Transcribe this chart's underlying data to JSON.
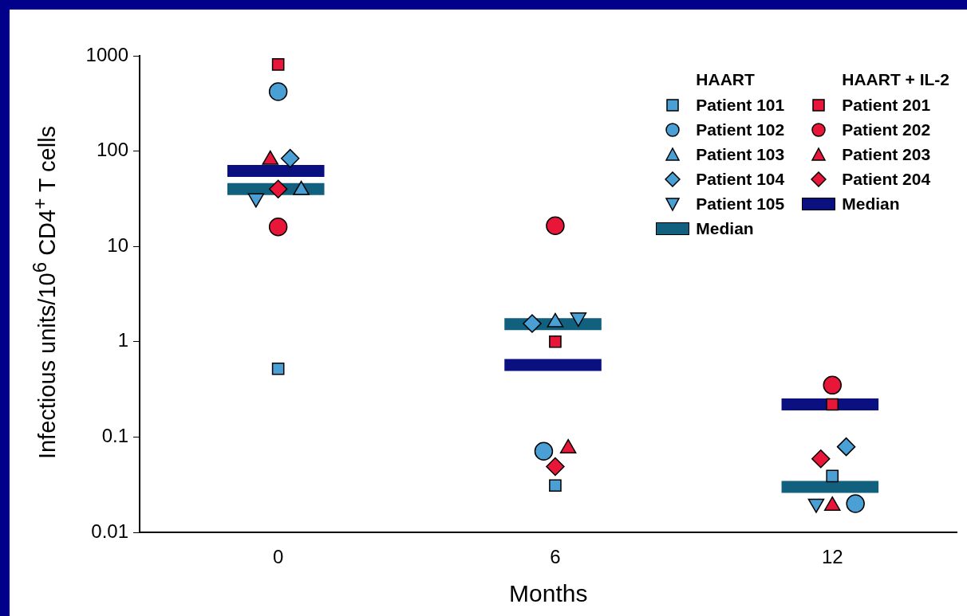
{
  "chart_data": {
    "type": "scatter",
    "xlabel": "Months",
    "ylabel": "Infectious units/10$^{6}$ CD4$^{+}$ T cells",
    "log": "y",
    "ylim": [
      0.01,
      1000
    ],
    "yticks": [
      0.01,
      0.1,
      1,
      10,
      100,
      1000
    ],
    "xlim": [
      -3,
      14.7
    ],
    "xticks": [
      0,
      6,
      12
    ],
    "legend": "top right",
    "annotations": [
      "HAART",
      "HAART + IL-2"
    ],
    "series": [
      {
        "name": "Patient 101",
        "color": "#4a9fd4",
        "marker": "square",
        "x": [
          0,
          6,
          12
        ],
        "values": [
          0.52,
          0.031,
          0.039
        ]
      },
      {
        "name": "Patient 102",
        "color": "#4a9fd4",
        "marker": "circle",
        "x": [
          0,
          5.75,
          12.5
        ],
        "values": [
          420,
          0.071,
          0.02
        ]
      },
      {
        "name": "Patient 103",
        "color": "#4a9fd4",
        "marker": "triangle",
        "x": [
          0.5,
          6,
          null
        ],
        "values": [
          39,
          1.6,
          null
        ]
      },
      {
        "name": "Patient 104",
        "color": "#4a9fd4",
        "marker": "diamond",
        "x": [
          0.26,
          5.5,
          12.3
        ],
        "values": [
          84,
          1.55,
          0.079
        ]
      },
      {
        "name": "Patient 105",
        "color": "#4a9fd4",
        "marker": "triangle_down",
        "x": [
          -0.48,
          6.5,
          11.65
        ],
        "values": [
          32,
          1.8,
          0.02
        ]
      },
      {
        "name": "Median",
        "type": "line",
        "color": "#10607e",
        "x": [
          -1.1,
          1,
          null,
          4.9,
          7,
          null,
          10.9,
          13
        ],
        "values": [
          40,
          40,
          null,
          1.53,
          1.53,
          null,
          0.03,
          0.03
        ]
      },
      {
        "name": "Patient 201",
        "color": "#e8173a",
        "marker": "square",
        "x": [
          0,
          6,
          12
        ],
        "values": [
          810,
          1,
          0.22
        ]
      },
      {
        "name": "Patient 202",
        "color": "#e8173a",
        "marker": "circle",
        "x": [
          0,
          6,
          12
        ],
        "values": [
          16,
          16.5,
          0.35
        ]
      },
      {
        "name": "Patient 203",
        "color": "#e8173a",
        "marker": "triangle",
        "x": [
          -0.17,
          6.28,
          12
        ],
        "values": [
          81,
          0.076,
          0.019
        ]
      },
      {
        "name": "Patient 204",
        "color": "#e8173a",
        "marker": "diamond",
        "x": [
          0,
          6,
          11.75
        ],
        "values": [
          40,
          0.049,
          0.059
        ]
      },
      {
        "name": "Median",
        "type": "line",
        "color": "#0a1080",
        "x": [
          -1.1,
          1,
          null,
          4.9,
          7,
          null,
          10.9,
          13
        ],
        "values": [
          62,
          62,
          null,
          0.57,
          0.57,
          null,
          0.22,
          0.22
        ]
      }
    ]
  }
}
